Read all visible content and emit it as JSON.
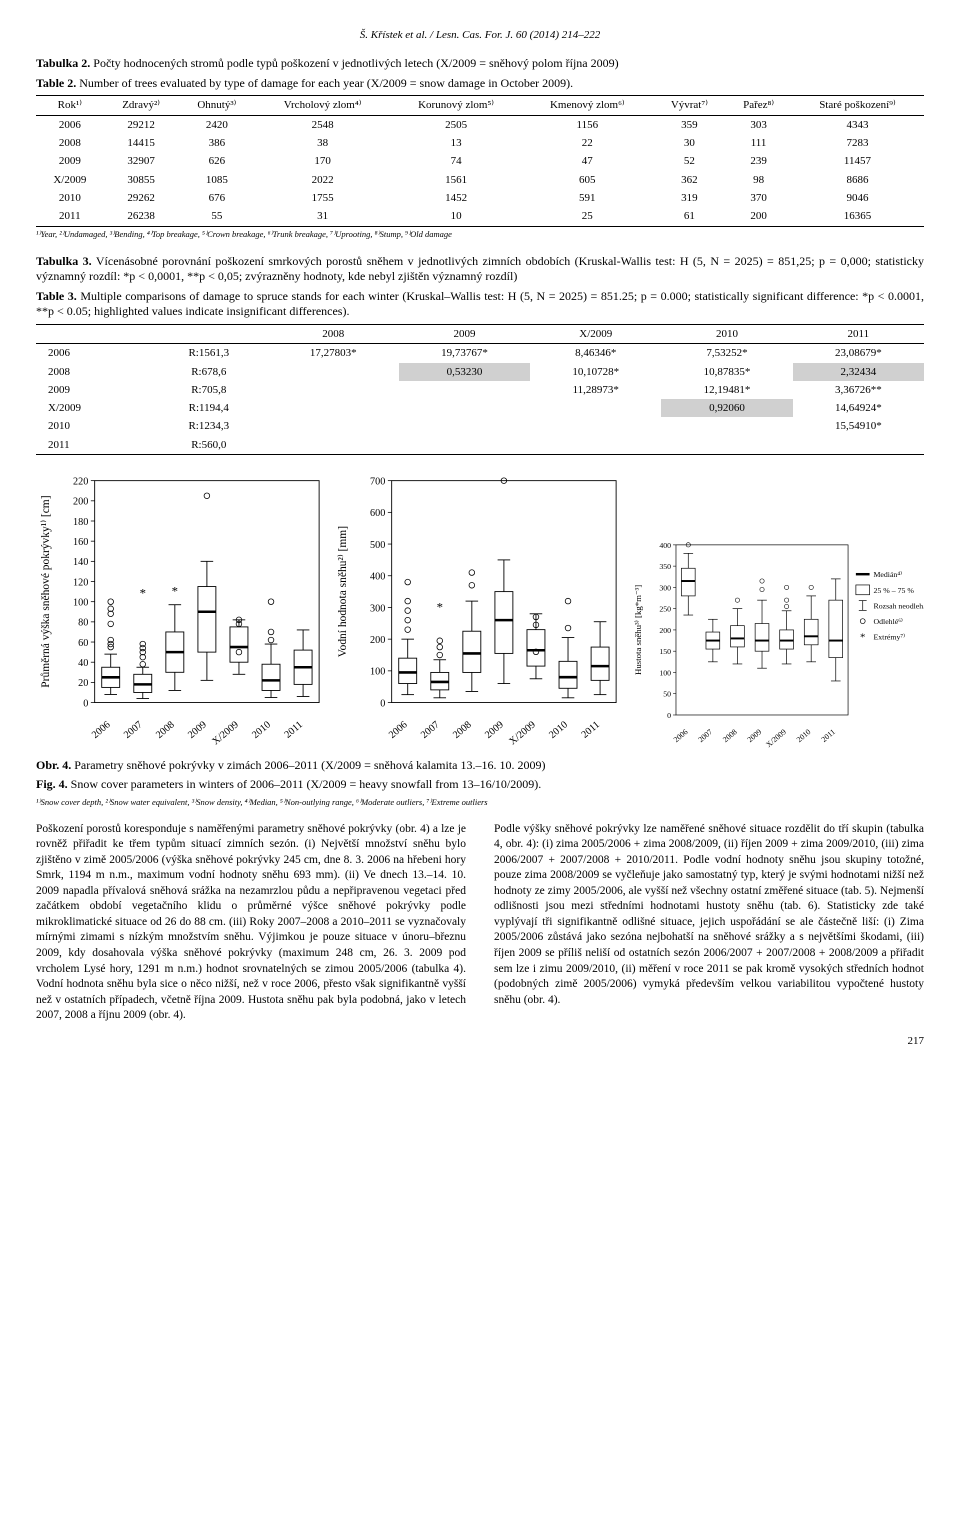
{
  "header": "Š. Křístek et al. / Lesn. Cas. For. J. 60 (2014) 214–222",
  "tab2": {
    "cz": "Tabulka 2. Počty hodnocených stromů podle typů poškození v jednotlivých letech (X/2009 = sněhový polom října 2009)",
    "en": "Table 2. Number of trees evaluated by type of damage for each year (X/2009 = snow damage in October 2009).",
    "headers": [
      "Rok¹⁾",
      "Zdravý²⁾",
      "Ohnutý³⁾",
      "Vrcholový zlom⁴⁾",
      "Korunový zlom⁵⁾",
      "Kmenový zlom⁶⁾",
      "Vývrat⁷⁾",
      "Pařez⁸⁾",
      "Staré poškození⁹⁾"
    ],
    "rows": [
      [
        "2006",
        "29212",
        "2420",
        "2548",
        "2505",
        "1156",
        "359",
        "303",
        "4343"
      ],
      [
        "2008",
        "14415",
        "386",
        "38",
        "13",
        "22",
        "30",
        "111",
        "7283"
      ],
      [
        "2009",
        "32907",
        "626",
        "170",
        "74",
        "47",
        "52",
        "239",
        "11457"
      ],
      [
        "X/2009",
        "30855",
        "1085",
        "2022",
        "1561",
        "605",
        "362",
        "98",
        "8686"
      ],
      [
        "2010",
        "29262",
        "676",
        "1755",
        "1452",
        "591",
        "319",
        "370",
        "9046"
      ],
      [
        "2011",
        "26238",
        "55",
        "31",
        "10",
        "25",
        "61",
        "200",
        "16365"
      ]
    ],
    "footnote": "¹⁾Year, ²⁾Undamaged, ³⁾Bending, ⁴⁾Top breakage, ⁵⁾Crown breakage, ⁶⁾Trunk breakage, ⁷⁾Uprooting, ⁸⁾Stump, ⁹⁾Old damage"
  },
  "tab3": {
    "cz": "Tabulka 3. Vícenásobné porovnání poškození smrkových porostů sněhem v jednotlivých zimních obdobích (Kruskal-Wallis test: H (5, N = 2025) = 851,25; p = 0,000; statisticky významný rozdíl: *p < 0,0001, **p < 0,05; zvýrazněny hodnoty, kde nebyl zjištěn významný rozdíl)",
    "en": "Table 3. Multiple comparisons of damage to spruce stands for each winter (Kruskal–Wallis test: H (5, N = 2025) = 851.25; p = 0.000; statistically significant difference: *p < 0.0001, **p < 0.05; highlighted values indicate insignificant differences).",
    "headers": [
      "",
      "2008",
      "2009",
      "X/2009",
      "2010",
      "2011"
    ],
    "rows": [
      [
        "2006",
        "R:1561,3",
        "17,27803*",
        "19,73767*",
        "8,46346*",
        "7,53252*",
        "23,08679*"
      ],
      [
        "2008",
        "R:678,6",
        "",
        "0,53230",
        "10,10728*",
        "10,87835*",
        "2,32434"
      ],
      [
        "2009",
        "R:705,8",
        "",
        "",
        "11,28973*",
        "12,19481*",
        "3,36726**"
      ],
      [
        "X/2009",
        "R:1194,4",
        "",
        "",
        "",
        "0,92060",
        "14,64924*"
      ],
      [
        "2010",
        "R:1234,3",
        "",
        "",
        "",
        "",
        "15,54910*"
      ],
      [
        "2011",
        "R:560,0",
        "",
        "",
        "",
        "",
        ""
      ]
    ],
    "shaded": [
      [
        1,
        3
      ],
      [
        1,
        6
      ],
      [
        3,
        5
      ]
    ]
  },
  "charts": {
    "xlabs": [
      "2006",
      "2007",
      "2008",
      "2009",
      "X/2009",
      "2010",
      "2011"
    ],
    "legend": {
      "median": "Medián⁴⁾",
      "iqr": "25 % – 75 %",
      "whisk": "Rozsah neodleh.⁵⁾",
      "out": "Odlehlé⁶⁾",
      "ext": "Extrémy⁷⁾"
    },
    "panels": [
      {
        "ylab": "Průměrná výška sněhové pokrývky¹⁾ [cm]",
        "ymin": 0,
        "ymax": 220,
        "ystep": 20,
        "boxes": [
          {
            "q1": 15,
            "med": 25,
            "q3": 35,
            "wlo": 8,
            "whi": 48,
            "out": [
              55,
              58,
              62,
              78,
              88,
              93,
              100
            ]
          },
          {
            "q1": 10,
            "med": 18,
            "q3": 28,
            "wlo": 4,
            "whi": 35,
            "out": [
              38,
              45,
              50,
              54,
              58
            ],
            "ext": [
              108
            ]
          },
          {
            "q1": 30,
            "med": 50,
            "q3": 70,
            "wlo": 12,
            "whi": 97,
            "out": [],
            "ext": [
              110
            ]
          },
          {
            "q1": 50,
            "med": 90,
            "q3": 115,
            "wlo": 22,
            "whi": 140,
            "out": [
              205
            ],
            "ext": []
          },
          {
            "q1": 40,
            "med": 55,
            "q3": 75,
            "wlo": 28,
            "whi": 82,
            "out": [
              50,
              78,
              82
            ],
            "ext": []
          },
          {
            "q1": 12,
            "med": 22,
            "q3": 38,
            "wlo": 5,
            "whi": 58,
            "out": [
              62,
              70,
              100
            ],
            "ext": []
          },
          {
            "q1": 18,
            "med": 35,
            "q3": 52,
            "wlo": 6,
            "whi": 72,
            "out": [],
            "ext": []
          }
        ]
      },
      {
        "ylab": "Vodní hodnota sněhu²⁾ [mm]",
        "ymin": 0,
        "ymax": 700,
        "ystep": 100,
        "boxes": [
          {
            "q1": 60,
            "med": 95,
            "q3": 140,
            "wlo": 25,
            "whi": 200,
            "out": [
              230,
              260,
              290,
              320,
              380
            ],
            "ext": []
          },
          {
            "q1": 40,
            "med": 65,
            "q3": 95,
            "wlo": 15,
            "whi": 135,
            "out": [
              150,
              175,
              195
            ],
            "ext": [
              300
            ]
          },
          {
            "q1": 95,
            "med": 155,
            "q3": 225,
            "wlo": 35,
            "whi": 320,
            "out": [
              370,
              410
            ],
            "ext": []
          },
          {
            "q1": 155,
            "med": 260,
            "q3": 350,
            "wlo": 60,
            "whi": 450,
            "out": [
              700
            ],
            "ext": []
          },
          {
            "q1": 115,
            "med": 165,
            "q3": 230,
            "wlo": 75,
            "whi": 280,
            "out": [
              160,
              245,
              270
            ],
            "ext": []
          },
          {
            "q1": 45,
            "med": 80,
            "q3": 130,
            "wlo": 15,
            "whi": 205,
            "out": [
              235,
              320
            ],
            "ext": []
          },
          {
            "q1": 70,
            "med": 115,
            "q3": 175,
            "wlo": 25,
            "whi": 255,
            "out": [],
            "ext": []
          }
        ]
      },
      {
        "ylab": "Hustota sněhu³⁾ [kg*m⁻³]",
        "ymin": 0,
        "ymax": 400,
        "ystep": 50,
        "boxes": [
          {
            "q1": 280,
            "med": 315,
            "q3": 345,
            "wlo": 235,
            "whi": 380,
            "out": [
              400
            ],
            "ext": []
          },
          {
            "q1": 155,
            "med": 175,
            "q3": 195,
            "wlo": 125,
            "whi": 225,
            "out": [],
            "ext": []
          },
          {
            "q1": 160,
            "med": 180,
            "q3": 210,
            "wlo": 120,
            "whi": 250,
            "out": [
              270
            ],
            "ext": []
          },
          {
            "q1": 150,
            "med": 175,
            "q3": 215,
            "wlo": 110,
            "whi": 270,
            "out": [
              295,
              315
            ],
            "ext": []
          },
          {
            "q1": 155,
            "med": 175,
            "q3": 200,
            "wlo": 120,
            "whi": 245,
            "out": [
              255,
              270,
              300
            ],
            "ext": []
          },
          {
            "q1": 165,
            "med": 185,
            "q3": 225,
            "wlo": 125,
            "whi": 280,
            "out": [
              300
            ],
            "ext": []
          },
          {
            "q1": 135,
            "med": 175,
            "q3": 270,
            "wlo": 80,
            "whi": 320,
            "out": [],
            "ext": []
          }
        ]
      }
    ]
  },
  "fig4": {
    "cz": "Obr. 4. Parametry sněhové pokrývky v zimách 2006–2011 (X/2009 = sněhová kalamita 13.–16. 10. 2009)",
    "en": "Fig. 4. Snow cover parameters in winters of 2006–2011 (X/2009 = heavy snowfall from 13–16/10/2009).",
    "fn": "¹⁾Snow cover depth, ²⁾Snow water equivalent, ³⁾Snow density, ⁴⁾Median, ⁵⁾Non-outlying range, ⁶⁾Moderate outliers, ⁷⁾Extreme outliers"
  },
  "body": {
    "left": "Poškození porostů koresponduje s naměřenými parametry sněhové pokrývky (obr. 4) a lze je rovněž přiřadit ke třem typům situací zimních sezón. (i) Největší množství sněhu bylo zjištěno v zimě 2005/2006 (výška sněhové pokrývky 245 cm, dne 8. 3. 2006 na hřebeni hory Smrk, 1194 m n.m., maximum vodní hodnoty sněhu 693 mm). (ii) Ve dnech 13.–14. 10. 2009 napadla přívalová sněhová srážka na nezamrzlou půdu a nepřipravenou vegetaci před začátkem období vegetačního klidu o průměrné výšce sněhové pokrývky podle mikroklimatické situace od 26 do 88 cm. (iii) Roky 2007–2008 a 2010–2011 se vyznačovaly mírnými zimami s nízkým množstvím sněhu. Výjimkou je pouze situace v únoru–březnu 2009, kdy dosahovala výška sněhové pokrývky (maximum 248 cm, 26. 3. 2009 pod vrcholem Lysé hory, 1291 m n.m.) hodnot srovnatelných se zimou 2005/2006 (tabulka 4). Vodní hodnota sněhu byla sice o něco nižší, než v roce 2006, přesto však signifikantně vyšší než v ostatních případech, včetně října 2009. Hustota sněhu pak byla podobná, jako v letech 2007, 2008 a říjnu 2009 (obr. 4).",
    "right": "Podle výšky sněhové pokrývky lze naměřené sněhové situace rozdělit do tří skupin (tabulka 4, obr. 4): (i) zima 2005/2006 + zima 2008/2009, (ii) říjen 2009 + zima 2009/2010, (iii) zima 2006/2007 + 2007/2008 + 2010/2011. Podle vodní hodnoty sněhu jsou skupiny totožné, pouze zima 2008/2009 se vyčleňuje jako samostatný typ, který je svými hodnotami nižší než hodnoty ze zimy 2005/2006, ale vyšší než všechny ostatní změřené situace (tab. 5). Nejmenší odlišnosti jsou mezi středními hodnotami hustoty sněhu (tab. 6). Statisticky zde také vyplývají tři signifikantně odlišné situace, jejich uspořádání se ale částečně liší: (i) Zima 2005/2006 zůstává jako sezóna nejbohatší na sněhové srážky a s největšími škodami, (iii) říjen 2009 se příliš neliší od ostatních sezón 2006/2007 + 2007/2008 + 2008/2009 a přiřadit sem lze i zimu 2009/2010, (ii) měření v roce 2011 se pak kromě vysokých středních hodnot (podobných zimě 2005/2006) vymyká především velkou variabilitou vypočtené hustoty sněhu (obr. 4)."
  },
  "pagenum": "217"
}
